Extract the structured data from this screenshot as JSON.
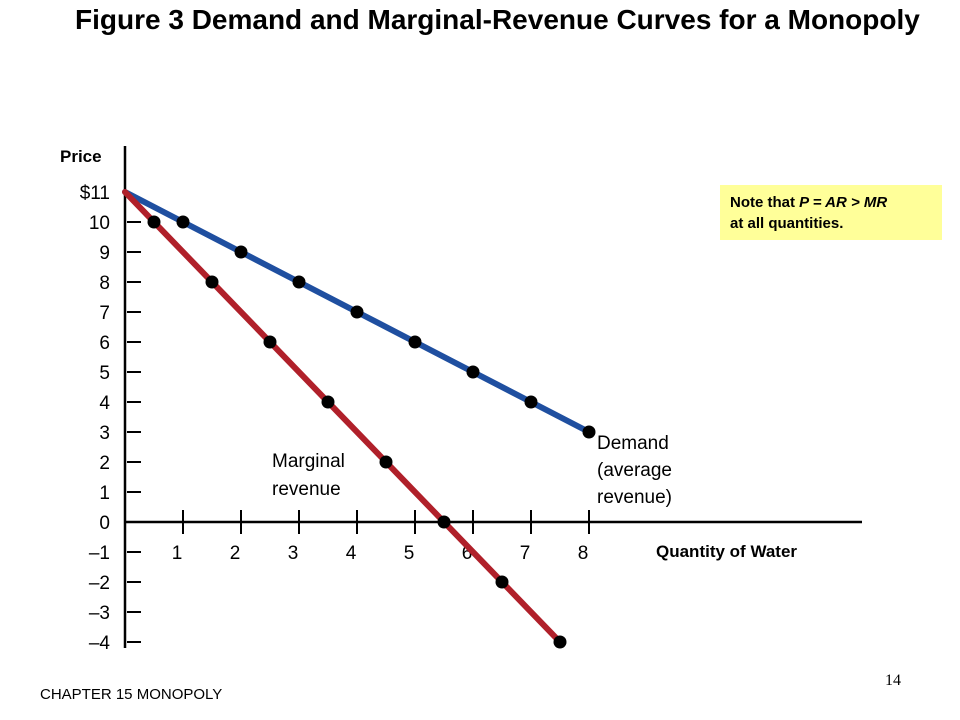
{
  "title": "Figure 3 Demand and Marginal-Revenue Curves for a Monopoly",
  "note": {
    "prefix": "Note that ",
    "formula": "P = AR > MR",
    "suffix": "at all quantities."
  },
  "footer": {
    "chapter": "CHAPTER 15 MONOPOLY",
    "page_number": "14"
  },
  "colors": {
    "demand": "#1f4fa0",
    "marginal_revenue": "#b0202a",
    "note_background": "#ffff99",
    "points": "#000000"
  },
  "chart_data": {
    "type": "line",
    "title": "Figure 3 Demand and Marginal-Revenue Curves for a Monopoly",
    "xlabel": "Quantity of Water",
    "ylabel": "Price",
    "xlim": [
      0,
      8
    ],
    "ylim": [
      -4,
      11
    ],
    "x_ticks": [
      1,
      2,
      3,
      4,
      5,
      6,
      7,
      8
    ],
    "x_tick_labels": [
      "1",
      "2",
      "3",
      "4",
      "5",
      "6",
      "7",
      "8"
    ],
    "y_ticks": [
      11,
      10,
      9,
      8,
      7,
      6,
      5,
      4,
      3,
      2,
      1,
      0,
      -1,
      -2,
      -3,
      -4
    ],
    "y_tick_labels": [
      "$11",
      "10",
      "9",
      "8",
      "7",
      "6",
      "5",
      "4",
      "3",
      "2",
      "1",
      "0",
      "–1",
      "–2",
      "–3",
      "–4"
    ],
    "grid": false,
    "series": [
      {
        "name": "Demand (average revenue)",
        "label_lines": [
          "Demand",
          "(average",
          "revenue)"
        ],
        "color": "#1f4fa0",
        "x": [
          0,
          1,
          2,
          3,
          4,
          5,
          6,
          7,
          8
        ],
        "y": [
          11,
          10,
          9,
          8,
          7,
          6,
          5,
          4,
          3
        ],
        "markers_at": [
          1,
          2,
          3,
          4,
          5,
          6,
          7,
          8
        ]
      },
      {
        "name": "Marginal revenue",
        "label_lines": [
          "Marginal",
          "revenue"
        ],
        "color": "#b0202a",
        "x": [
          0,
          0.5,
          1.5,
          2.5,
          3.5,
          4.5,
          5.5,
          6.5,
          7.5
        ],
        "y": [
          11,
          10,
          8,
          6,
          4,
          2,
          0,
          -2,
          -4
        ],
        "markers_at": [
          0.5,
          1.5,
          2.5,
          3.5,
          4.5,
          5.5,
          6.5,
          7.5
        ]
      }
    ],
    "annotation": "Note that P = AR > MR at all quantities."
  }
}
